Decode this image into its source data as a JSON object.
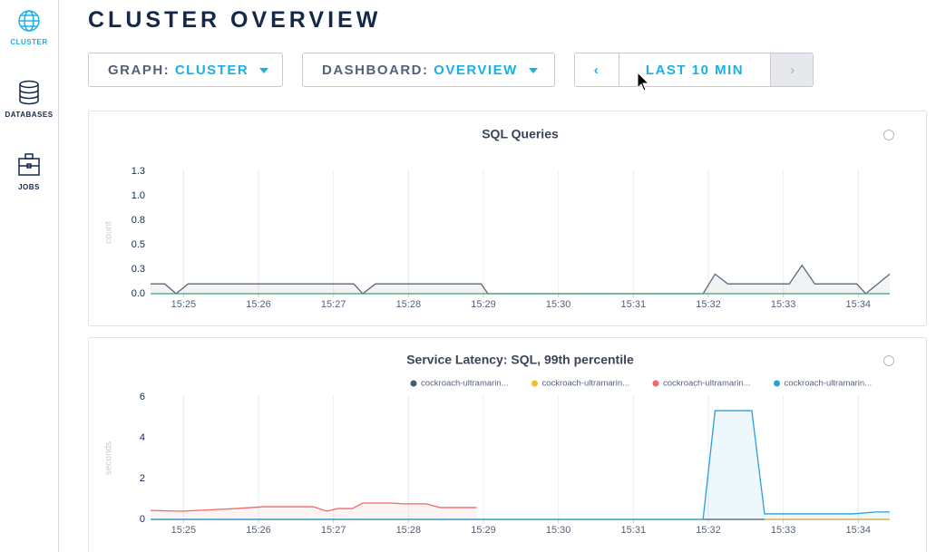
{
  "sidebar": {
    "items": [
      {
        "label": "CLUSTER"
      },
      {
        "label": "DATABASES"
      },
      {
        "label": "JOBS"
      }
    ]
  },
  "header": {
    "title": "CLUSTER OVERVIEW"
  },
  "controls": {
    "graph": {
      "label": "GRAPH:",
      "value": "CLUSTER"
    },
    "dashboard": {
      "label": "DASHBOARD:",
      "value": "OVERVIEW"
    },
    "time_range": "LAST 10 MIN"
  },
  "chart_data": [
    {
      "type": "line",
      "title": "SQL Queries",
      "y_label": "count",
      "area": true,
      "grid": "x",
      "xlim": [
        924.56,
        934.42
      ],
      "xticks": [
        {
          "value": 925,
          "label": "15:25"
        },
        {
          "value": 926,
          "label": "15:26"
        },
        {
          "value": 927,
          "label": "15:27"
        },
        {
          "value": 928,
          "label": "15:28"
        },
        {
          "value": 929,
          "label": "15:29"
        },
        {
          "value": 930,
          "label": "15:30"
        },
        {
          "value": 931,
          "label": "15:31"
        },
        {
          "value": 932,
          "label": "15:32"
        },
        {
          "value": 933,
          "label": "15:33"
        },
        {
          "value": 934,
          "label": "15:34"
        }
      ],
      "ylim": [
        0,
        1.25
      ],
      "yticks": [
        {
          "value": 0,
          "label": "0.0"
        },
        {
          "value": 0.25,
          "label": "0.3"
        },
        {
          "value": 0.5,
          "label": "0.5"
        },
        {
          "value": 0.75,
          "label": "0.8"
        },
        {
          "value": 1.0,
          "label": "1.0"
        },
        {
          "value": 1.25,
          "label": "1.3"
        }
      ],
      "series": [
        {
          "color": "#5a6780",
          "x": [
            924.56,
            924.75,
            924.9,
            925.06,
            927.27,
            927.39,
            927.56,
            928.97,
            929.06,
            931.93,
            932.09,
            932.26,
            933.08,
            933.25,
            933.42,
            933.98,
            934.1,
            934.42
          ],
          "values": [
            0.1,
            0.1,
            0,
            0.1,
            0.1,
            0,
            0.1,
            0.1,
            0,
            0,
            0.2,
            0.1,
            0.1,
            0.29,
            0.1,
            0.1,
            0,
            0.2
          ]
        },
        {
          "color": "#37a86e",
          "x": [
            924.56,
            934.42
          ],
          "values": [
            0,
            0
          ]
        }
      ]
    },
    {
      "type": "line",
      "title": "Service Latency: SQL, 99th percentile",
      "y_label": "seconds",
      "area": true,
      "grid": "x",
      "xlim": [
        924.56,
        934.42
      ],
      "xticks": [
        {
          "value": 925,
          "label": "15:25"
        },
        {
          "value": 926,
          "label": "15:26"
        },
        {
          "value": 927,
          "label": "15:27"
        },
        {
          "value": 928,
          "label": "15:28"
        },
        {
          "value": 929,
          "label": "15:29"
        },
        {
          "value": 930,
          "label": "15:30"
        },
        {
          "value": 931,
          "label": "15:31"
        },
        {
          "value": 932,
          "label": "15:32"
        },
        {
          "value": 933,
          "label": "15:33"
        },
        {
          "value": 934,
          "label": "15:34"
        }
      ],
      "ylim": [
        0,
        6
      ],
      "yticks": [
        0,
        2,
        4,
        6
      ],
      "series": [
        {
          "name": "cockroach-ultramarin...",
          "color": "#475872",
          "x": [
            924.56,
            934.42
          ],
          "values": [
            0,
            0
          ]
        },
        {
          "name": "cockroach-ultramarin...",
          "color": "#f2be2c",
          "x": [
            932.75,
            934.42
          ],
          "values": [
            0,
            0
          ]
        },
        {
          "name": "cockroach-ultramarin...",
          "color": "#f16969",
          "x": [
            924.56,
            924.98,
            925.46,
            925.7,
            926.06,
            926.73,
            926.91,
            927.06,
            927.25,
            927.39,
            927.76,
            927.94,
            928.24,
            928.42,
            928.91
          ],
          "values": [
            0.44,
            0.4,
            0.49,
            0.53,
            0.62,
            0.62,
            0.4,
            0.53,
            0.53,
            0.8,
            0.8,
            0.76,
            0.76,
            0.58,
            0.58
          ]
        },
        {
          "name": "cockroach-ultramarin...",
          "color": "#29a0d8",
          "x": [
            924.56,
            931.93,
            932.09,
            932.58,
            932.75,
            933.44,
            933.93,
            934.23,
            934.42
          ],
          "values": [
            0,
            0,
            5.33,
            5.33,
            0.27,
            0.27,
            0.27,
            0.36,
            0.36
          ]
        }
      ]
    }
  ]
}
